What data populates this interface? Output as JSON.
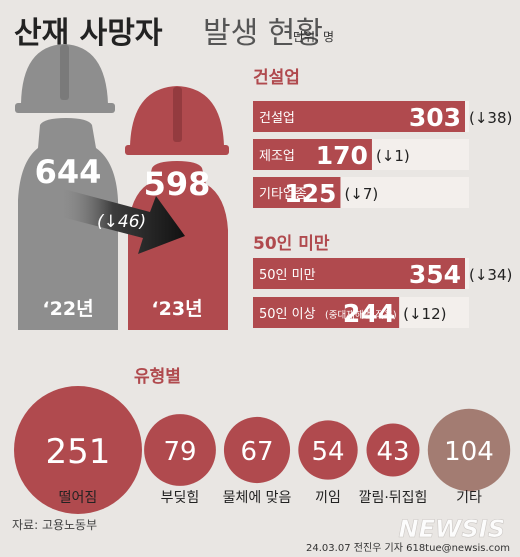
{
  "header": {
    "title": "산재 사망자",
    "title_light": "발생 현황",
    "unit": "단위: 명"
  },
  "workers": {
    "y2022": {
      "value": "644",
      "year": "‘22년"
    },
    "y2023": {
      "value": "598",
      "year": "‘23년"
    },
    "change_label": "(↓46)"
  },
  "colors": {
    "accent": "#b04a4e",
    "gray": "#8e8e8e",
    "dark": "#222222",
    "blue_arrow": "#2e6ea8",
    "bar_light": "#f3efec",
    "tan": "#a37c72"
  },
  "footer": {
    "source": "자료: 고용노동부",
    "credit": "24.03.07 전진우 기자 618tue@newsis.com",
    "logo": "NEWSIS"
  },
  "chart_data": [
    {
      "type": "bar",
      "title": "",
      "section_title": "건설업",
      "categories": [
        "건설업",
        "제조업",
        "기타업종"
      ],
      "values": [
        303,
        170,
        125
      ],
      "changes": [
        "(↓38)",
        "(↓1)",
        "(↓7)"
      ],
      "value_labels": [
        "303",
        "170",
        "125"
      ]
    },
    {
      "type": "bar",
      "section_title": "50인 미만",
      "categories": [
        "50인 미만",
        "50인 이상"
      ],
      "category_notes": [
        "",
        "(중대재해법 적용)"
      ],
      "values": [
        354,
        244
      ],
      "changes": [
        "(↓34)",
        "(↓12)"
      ],
      "value_labels": [
        "354",
        "244"
      ]
    },
    {
      "type": "bubble",
      "section_title": "유형별",
      "categories": [
        "떨어짐",
        "부딪힘",
        "물체에 맞음",
        "끼임",
        "깔림·뒤집힘",
        "기타"
      ],
      "values": [
        251,
        79,
        67,
        54,
        43,
        104
      ],
      "value_labels": [
        "251",
        "79",
        "67",
        "54",
        "43",
        "104"
      ]
    }
  ]
}
